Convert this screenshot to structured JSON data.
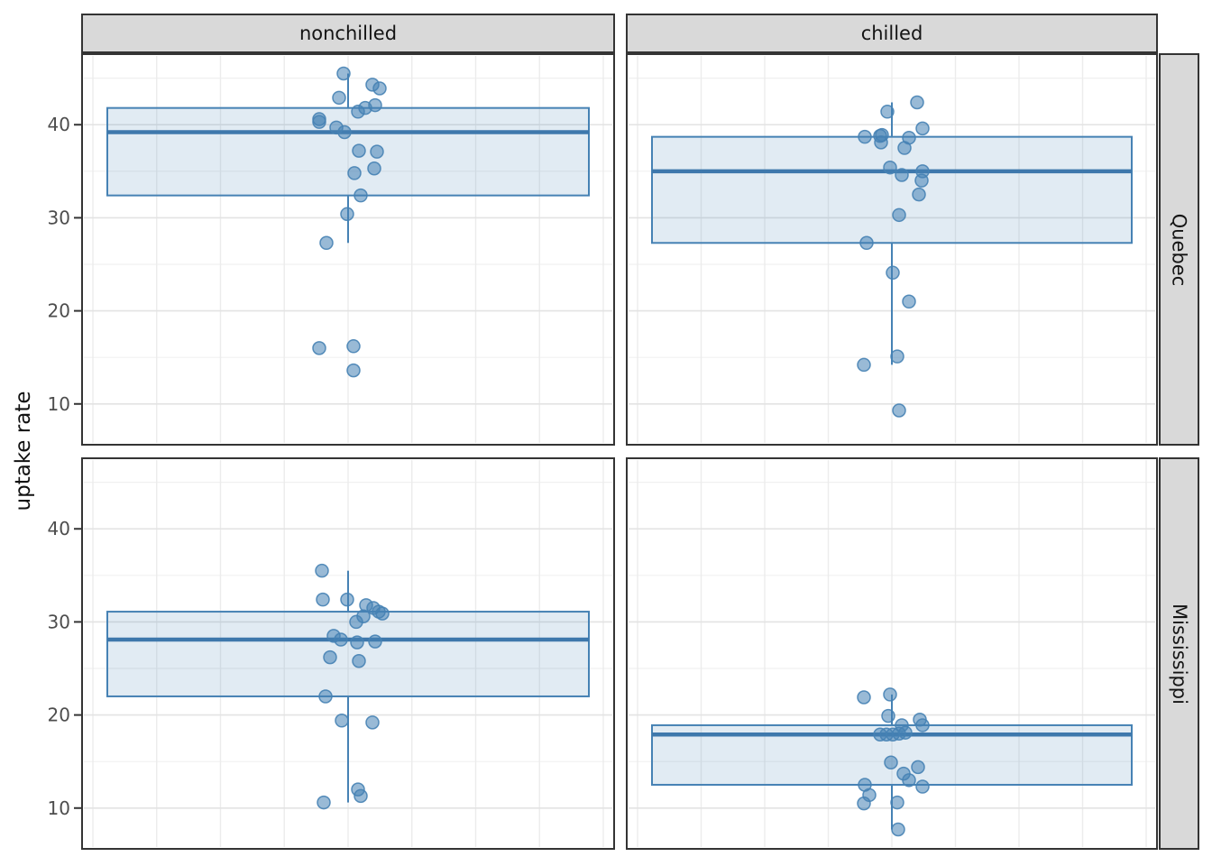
{
  "colors": {
    "box_stroke": "#4682b4",
    "box_fill": "rgba(70,130,180,0.16)",
    "median_stroke": "#3e78ac",
    "point_fill": "rgba(70,130,180,0.55)",
    "point_stroke": "rgba(70,130,180,0.9)",
    "strip_fill": "#d9d9d9",
    "panel_border": "#343434",
    "panel_bg": "#ffffff",
    "grid_major": "#e3e3e3",
    "grid_minor": "#f0f0f0",
    "grid_vertical": "#ececec",
    "tick_label": "#4d4d4d",
    "tick_mark": "#343434"
  },
  "chart_data": {
    "type": "boxplot",
    "title": "",
    "xlabel": "",
    "ylabel": "uptake rate",
    "legend": "none",
    "facet_cols": [
      "nonchilled",
      "chilled"
    ],
    "facet_rows": [
      "Quebec",
      "Mississippi"
    ],
    "y_domain": [
      5.81,
      47.39
    ],
    "y_ticks": [
      40,
      30,
      20,
      10
    ],
    "y_minor_ticks": [
      45,
      35,
      25,
      15
    ],
    "grid": "on",
    "panels": [
      {
        "row": "Quebec",
        "col": "nonchilled",
        "box": {
          "whisker_low": 27.3,
          "q1": 32.4,
          "median": 39.2,
          "q3": 41.8,
          "whisker_high": 45.5
        },
        "points": [
          [
            45.5,
            -5
          ],
          [
            44.3,
            27
          ],
          [
            43.9,
            35
          ],
          [
            42.9,
            -10
          ],
          [
            42.1,
            30
          ],
          [
            41.8,
            19
          ],
          [
            41.4,
            11
          ],
          [
            40.6,
            -32
          ],
          [
            40.3,
            -32
          ],
          [
            39.7,
            -13
          ],
          [
            39.2,
            -4
          ],
          [
            37.2,
            12
          ],
          [
            37.1,
            32
          ],
          [
            35.3,
            29
          ],
          [
            34.8,
            7
          ],
          [
            32.4,
            14
          ],
          [
            30.4,
            -1
          ],
          [
            27.3,
            -24
          ],
          [
            16.2,
            6
          ],
          [
            16.0,
            -32
          ],
          [
            13.6,
            6
          ]
        ]
      },
      {
        "row": "Quebec",
        "col": "chilled",
        "box": {
          "whisker_low": 14.2,
          "q1": 27.3,
          "median": 35.0,
          "q3": 38.7,
          "whisker_high": 42.4
        },
        "points": [
          [
            42.4,
            28
          ],
          [
            41.4,
            -5
          ],
          [
            39.6,
            34
          ],
          [
            38.9,
            -11
          ],
          [
            38.8,
            -13
          ],
          [
            38.7,
            -30
          ],
          [
            38.6,
            19
          ],
          [
            38.1,
            -12
          ],
          [
            37.5,
            14
          ],
          [
            35.4,
            -2
          ],
          [
            35.0,
            34
          ],
          [
            34.6,
            11
          ],
          [
            34.0,
            33
          ],
          [
            32.5,
            30
          ],
          [
            30.3,
            8
          ],
          [
            27.3,
            -28
          ],
          [
            24.1,
            1
          ],
          [
            21.0,
            19
          ],
          [
            15.1,
            6
          ],
          [
            14.2,
            -31
          ],
          [
            9.3,
            8
          ]
        ]
      },
      {
        "row": "Mississippi",
        "col": "nonchilled",
        "box": {
          "whisker_low": 10.6,
          "q1": 22.0,
          "median": 28.1,
          "q3": 31.1,
          "whisker_high": 35.5
        },
        "points": [
          [
            35.5,
            -29
          ],
          [
            32.4,
            -28
          ],
          [
            32.4,
            -1
          ],
          [
            31.8,
            20
          ],
          [
            31.5,
            28
          ],
          [
            31.1,
            34
          ],
          [
            30.9,
            38
          ],
          [
            30.6,
            17
          ],
          [
            30.0,
            9
          ],
          [
            28.5,
            -16
          ],
          [
            28.1,
            -8
          ],
          [
            27.9,
            30
          ],
          [
            27.8,
            10
          ],
          [
            26.2,
            -20
          ],
          [
            25.8,
            12
          ],
          [
            22.0,
            -25
          ],
          [
            19.4,
            -7
          ],
          [
            19.2,
            27
          ],
          [
            12.0,
            11
          ],
          [
            11.3,
            14
          ],
          [
            10.6,
            -27
          ]
        ]
      },
      {
        "row": "Mississippi",
        "col": "chilled",
        "box": {
          "whisker_low": 7.7,
          "q1": 12.5,
          "median": 17.9,
          "q3": 18.9,
          "whisker_high": 22.2
        },
        "points": [
          [
            22.2,
            -2
          ],
          [
            21.9,
            -31
          ],
          [
            19.9,
            -4
          ],
          [
            19.5,
            31
          ],
          [
            18.9,
            11
          ],
          [
            18.9,
            34
          ],
          [
            18.1,
            15
          ],
          [
            18.0,
            8
          ],
          [
            17.9,
            -13
          ],
          [
            17.9,
            -6
          ],
          [
            17.9,
            1
          ],
          [
            14.9,
            -1
          ],
          [
            14.4,
            29
          ],
          [
            13.7,
            13
          ],
          [
            13.0,
            19
          ],
          [
            12.5,
            -30
          ],
          [
            12.3,
            34
          ],
          [
            11.4,
            -25
          ],
          [
            10.6,
            6
          ],
          [
            10.5,
            -31
          ],
          [
            7.7,
            7
          ]
        ]
      }
    ]
  }
}
